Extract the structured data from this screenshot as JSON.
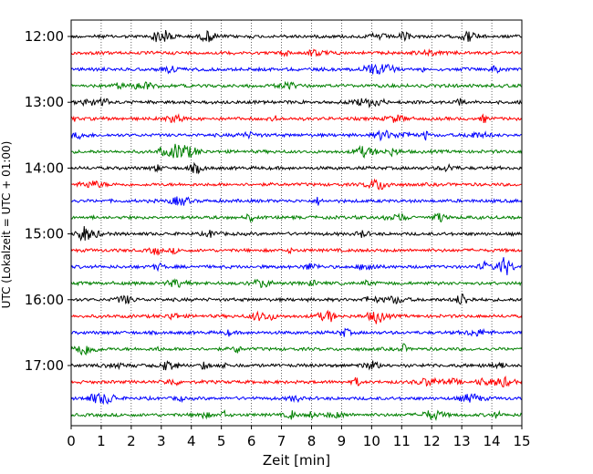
{
  "chart_data": {
    "type": "line",
    "subtype": "helicorder",
    "title": "",
    "xlabel": "Zeit  [min]",
    "ylabel": "UTC (Lokalzeit = UTC + 01:00)",
    "x_unit": "min",
    "xlim": [
      0,
      15
    ],
    "x_ticks": [
      0,
      1,
      2,
      3,
      4,
      5,
      6,
      7,
      8,
      9,
      10,
      11,
      12,
      13,
      14,
      15
    ],
    "y_tick_labels": [
      "12:00",
      "13:00",
      "14:00",
      "15:00",
      "16:00",
      "17:00"
    ],
    "trace_interval_min": 15,
    "trace_start_times": [
      "12:00",
      "12:15",
      "12:30",
      "12:45",
      "13:00",
      "13:15",
      "13:30",
      "13:45",
      "14:00",
      "14:15",
      "14:30",
      "14:45",
      "15:00",
      "15:15",
      "15:30",
      "15:45",
      "16:00",
      "16:15",
      "16:30",
      "16:45",
      "17:00",
      "17:15",
      "17:30",
      "17:45"
    ],
    "trace_colors": [
      "#000000",
      "#ff0000",
      "#0000ff",
      "#008000"
    ],
    "grid_x": "dotted vertical at each minute",
    "legend": "none"
  }
}
